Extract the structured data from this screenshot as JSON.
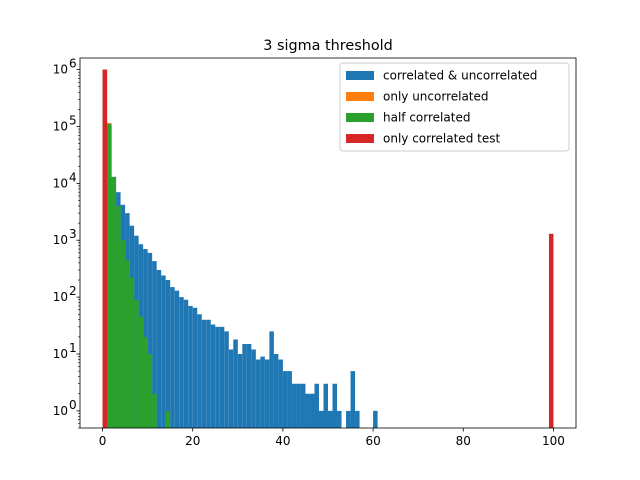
{
  "chart_data": {
    "type": "bar",
    "title": "3 sigma threshold",
    "xlabel": "",
    "ylabel": "",
    "xlim": [
      -5,
      105
    ],
    "ylim": [
      0.5,
      1600000
    ],
    "yscale": "log",
    "grid": false,
    "legend_position": "top-right",
    "x_ticks": [
      0,
      20,
      40,
      60,
      80,
      100
    ],
    "y_ticks": [
      {
        "value": 1,
        "label": "10",
        "exp": "0"
      },
      {
        "value": 10,
        "label": "10",
        "exp": "1"
      },
      {
        "value": 100,
        "label": "10",
        "exp": "2"
      },
      {
        "value": 1000,
        "label": "10",
        "exp": "3"
      },
      {
        "value": 10000,
        "label": "10",
        "exp": "4"
      },
      {
        "value": 100000,
        "label": "10",
        "exp": "5"
      },
      {
        "value": 1000000,
        "label": "10",
        "exp": "6"
      }
    ],
    "bin_edges_start": 0,
    "bin_width": 1,
    "series": [
      {
        "name": "correlated & uncorrelated",
        "color": "#1f77b4",
        "values": [
          1000000,
          100000,
          13000,
          7000,
          4200,
          3000,
          1800,
          1200,
          850,
          700,
          600,
          430,
          300,
          240,
          200,
          150,
          130,
          100,
          90,
          70,
          65,
          50,
          40,
          40,
          33,
          30,
          30,
          25,
          12,
          18,
          10,
          15,
          15,
          12,
          8,
          9,
          8,
          25,
          10,
          8,
          5,
          5,
          3,
          3,
          3,
          2,
          2,
          3,
          1,
          3,
          1,
          3,
          1,
          0,
          1,
          5,
          1,
          0,
          0,
          0,
          1
        ]
      },
      {
        "name": "only uncorrelated",
        "color": "#ff7f0e",
        "values": [
          1000000,
          115000
        ]
      },
      {
        "name": "half correlated",
        "color": "#2ca02c",
        "values": [
          1000000,
          110000,
          13000,
          4000,
          1000,
          450,
          220,
          90,
          45,
          20,
          10,
          2,
          0,
          0,
          1
        ]
      },
      {
        "name": "only correlated test",
        "color": "#d62728",
        "bars": [
          {
            "x": 0,
            "value": 1000000
          },
          {
            "x": 99,
            "value": 1300
          }
        ]
      }
    ]
  }
}
